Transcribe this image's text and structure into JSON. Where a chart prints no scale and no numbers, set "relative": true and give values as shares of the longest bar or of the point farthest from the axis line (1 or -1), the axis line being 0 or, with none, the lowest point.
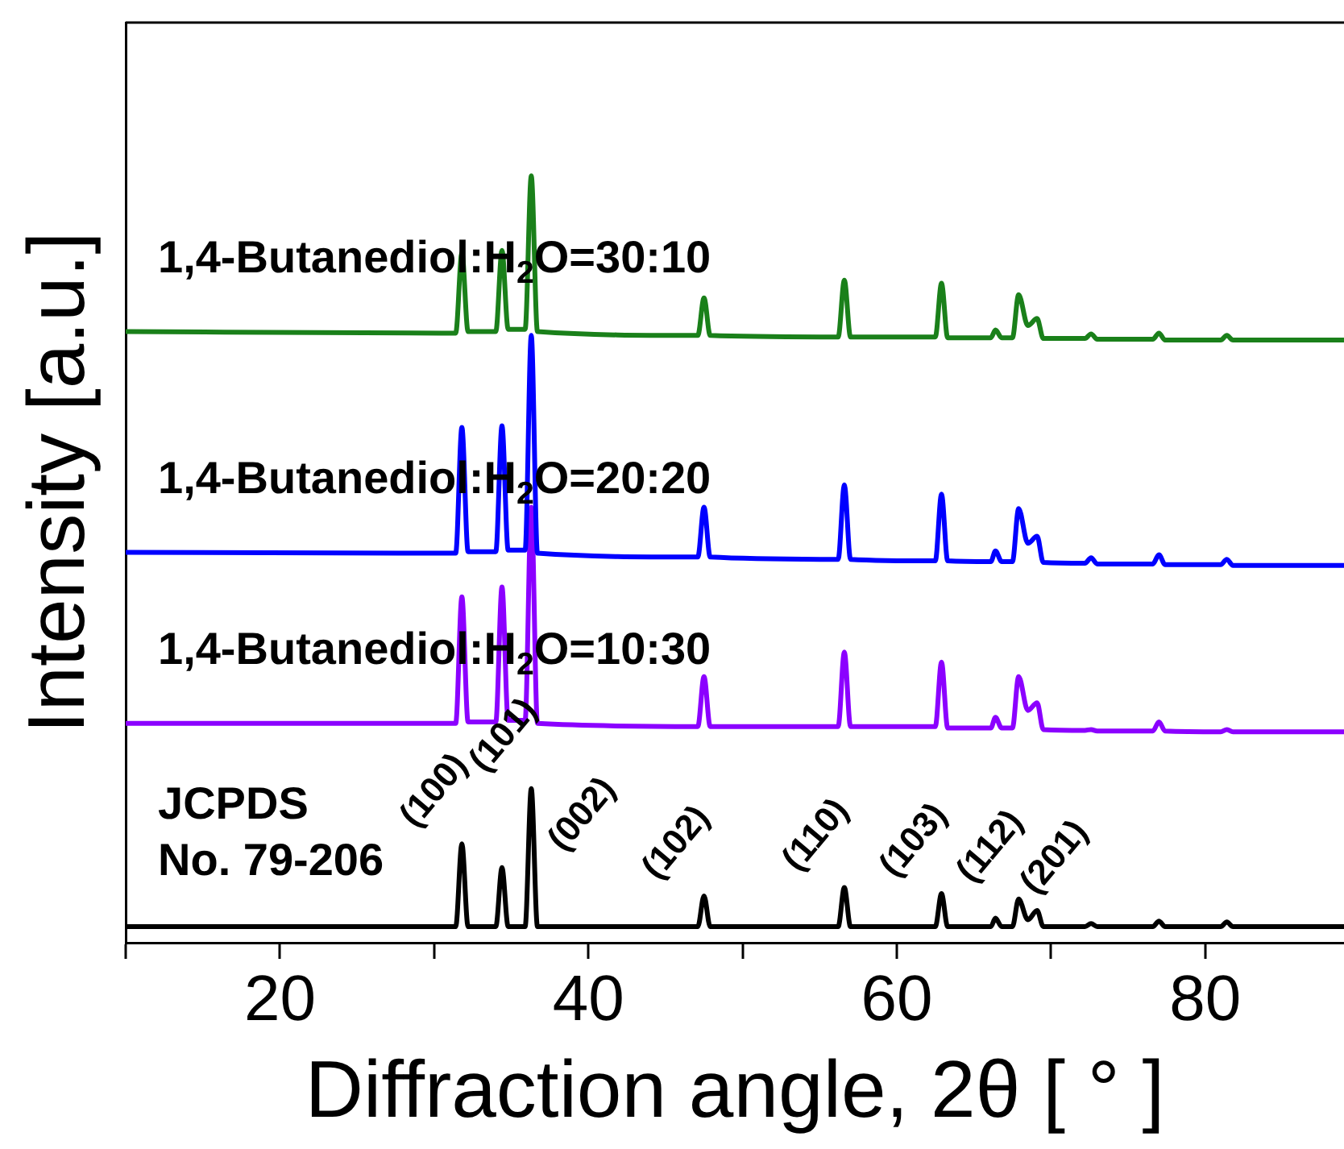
{
  "chart_data": {
    "type": "line",
    "relative": true,
    "xlabel": "Diffraction angle, 2θ [ ° ]",
    "ylabel": "Intensity [a.u.]",
    "x": [
      10,
      31.4,
      31.8,
      32.2,
      34.0,
      34.4,
      34.8,
      35.9,
      36.3,
      36.7,
      47.1,
      47.5,
      47.9,
      56.2,
      56.6,
      57.0,
      62.5,
      62.9,
      63.3,
      66.1,
      66.4,
      66.8,
      67.5,
      67.9,
      68.5,
      69.1,
      69.5,
      72.2,
      72.6,
      73.0,
      76.6,
      77.0,
      77.4,
      81.0,
      81.4,
      81.8,
      89
    ],
    "xlim": [
      10,
      89
    ],
    "xticks": [
      {
        "value": 10,
        "label": null
      },
      20,
      {
        "value": 30,
        "label": null
      },
      40,
      {
        "value": 50,
        "label": null
      },
      60,
      {
        "value": 70,
        "label": null
      },
      80
    ],
    "legend": false,
    "grid": false,
    "marker": "none",
    "line_style": "solid",
    "series": [
      {
        "name": "1,4-Butanediol:H$_{2}$O=30:10",
        "color": "#1a801a",
        "values": [
          0.797,
          0.795,
          0.9,
          0.797,
          0.797,
          0.903,
          0.8,
          0.8,
          1,
          0.797,
          0.792,
          0.841,
          0.792,
          0.79,
          0.864,
          0.79,
          0.79,
          0.86,
          0.789,
          0.789,
          0.799,
          0.789,
          0.789,
          0.845,
          0.805,
          0.814,
          0.788,
          0.788,
          0.794,
          0.787,
          0.787,
          0.795,
          0.786,
          0.786,
          0.792,
          0.786,
          0.786
        ]
      },
      {
        "name": "1,4-Butanediol:H$_{2}$O=20:20",
        "color": "#0000ff",
        "values": [
          0.509,
          0.508,
          0.672,
          0.51,
          0.51,
          0.674,
          0.512,
          0.512,
          0.792,
          0.508,
          0.503,
          0.568,
          0.503,
          0.5,
          0.597,
          0.5,
          0.498,
          0.585,
          0.498,
          0.497,
          0.511,
          0.497,
          0.497,
          0.566,
          0.521,
          0.53,
          0.496,
          0.495,
          0.502,
          0.494,
          0.494,
          0.506,
          0.493,
          0.493,
          0.5,
          0.492,
          0.492
        ]
      },
      {
        "name": "1,4-Butanediol:H$_{2}$O=10:30",
        "color": "#8b00ff",
        "values": [
          0.286,
          0.286,
          0.451,
          0.288,
          0.288,
          0.464,
          0.29,
          0.29,
          0.568,
          0.286,
          0.282,
          0.347,
          0.282,
          0.282,
          0.379,
          0.282,
          0.282,
          0.366,
          0.28,
          0.28,
          0.294,
          0.28,
          0.28,
          0.347,
          0.303,
          0.313,
          0.278,
          0.277,
          0.278,
          0.276,
          0.276,
          0.288,
          0.276,
          0.275,
          0.278,
          0.275,
          0.275
        ]
      },
      {
        "name": "JCPDS\nNo. 79-206",
        "color": "#000000",
        "values": [
          0.021,
          0.021,
          0.129,
          0.021,
          0.021,
          0.098,
          0.021,
          0.021,
          0.201,
          0.021,
          0.021,
          0.061,
          0.021,
          0.021,
          0.072,
          0.021,
          0.021,
          0.064,
          0.021,
          0.021,
          0.032,
          0.021,
          0.021,
          0.057,
          0.03,
          0.042,
          0.021,
          0.021,
          0.025,
          0.021,
          0.021,
          0.028,
          0.021,
          0.021,
          0.027,
          0.021,
          0.021
        ]
      }
    ],
    "annotations": [
      {
        "text": "(100)",
        "x": 31.8,
        "y": 0.129
      },
      {
        "text": "(002)",
        "x": 34.4,
        "y": 0.098
      },
      {
        "text": "(101)",
        "x": 36.3,
        "y": 0.201
      },
      {
        "text": "(102)",
        "x": 47.5,
        "y": 0.061
      },
      {
        "text": "(110)",
        "x": 56.6,
        "y": 0.072
      },
      {
        "text": "(103)",
        "x": 62.9,
        "y": 0.064
      },
      {
        "text": "(112)",
        "x": 67.9,
        "y": 0.057
      },
      {
        "text": "(201)",
        "x": 69.1,
        "y": 0.042
      }
    ]
  }
}
